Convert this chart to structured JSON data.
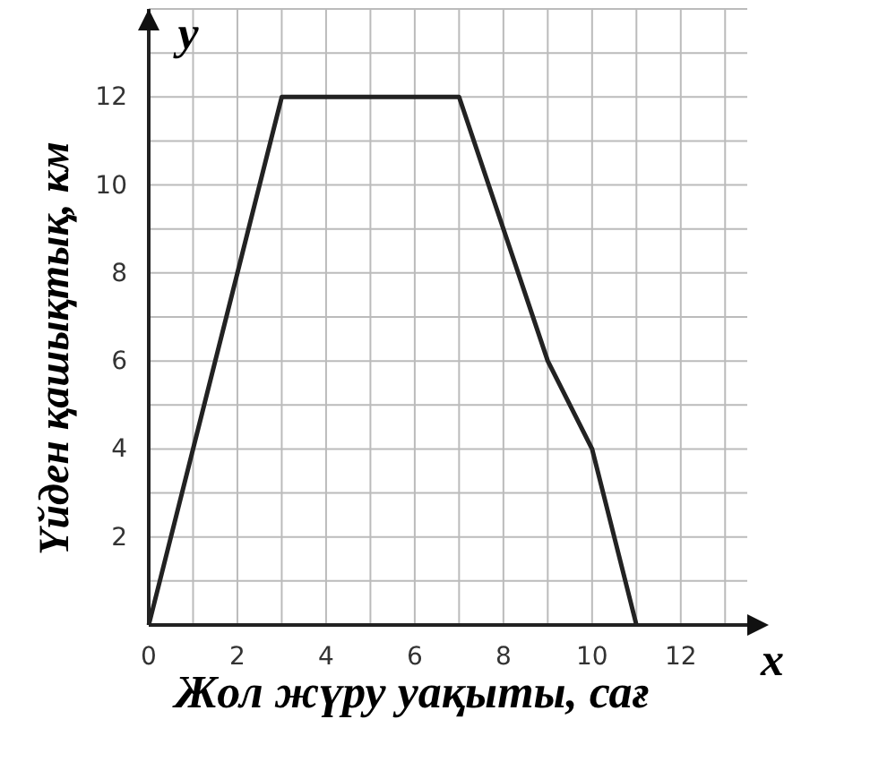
{
  "chart_data": {
    "type": "line",
    "xlabel": "Жол жүру уақыты, сағ",
    "ylabel": "Үйден қашықтық, км",
    "annotations": [
      "x",
      "y"
    ],
    "x": [
      0,
      3,
      7,
      9,
      10,
      11
    ],
    "series": [
      {
        "color": "#222222",
        "values": [
          0,
          12,
          12,
          6,
          4,
          0
        ]
      }
    ],
    "xlim": [
      0,
      13.5
    ],
    "ylim": [
      0,
      14
    ],
    "xticks": [
      0,
      {
        "value": 1,
        "label": null
      },
      2,
      {
        "value": 3,
        "label": null
      },
      4,
      {
        "value": 5,
        "label": null
      },
      6,
      {
        "value": 7,
        "label": null
      },
      8,
      {
        "value": 9,
        "label": null
      },
      10,
      {
        "value": 11,
        "label": null
      },
      12,
      {
        "value": 13,
        "label": null
      }
    ],
    "yticks": [
      {
        "value": 0,
        "label": null
      },
      {
        "value": 1,
        "label": null
      },
      2,
      {
        "value": 3,
        "label": null
      },
      4,
      {
        "value": 5,
        "label": null
      },
      6,
      {
        "value": 7,
        "label": null
      },
      8,
      {
        "value": 9,
        "label": null
      },
      10,
      {
        "value": 11,
        "label": null
      },
      12,
      {
        "value": 13,
        "label": null
      },
      {
        "value": 14,
        "label": null
      }
    ],
    "grid": true,
    "marker": "none",
    "line_style": "solid"
  }
}
